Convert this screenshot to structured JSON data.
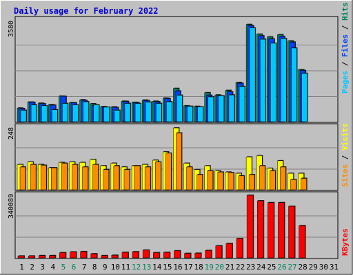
{
  "title": "Daily usage for February 2022",
  "colors": {
    "background": "#c0c0c0",
    "plot_bg": "#c0c0c0",
    "grid": "#808080",
    "title": "#0000cc",
    "hits": "#008060",
    "files": "#0040ff",
    "pages": "#00c8ff",
    "visits": "#ffff00",
    "sites": "#ff8c00",
    "kbytes": "#ff0000",
    "weekend_label": "#008060",
    "weekday_label": "#000000"
  },
  "chart_data": [
    {
      "type": "bar",
      "panel": "hits-files-pages",
      "ymax_label": "3580",
      "ylim": [
        0,
        3580
      ],
      "legend_text": {
        "pages": "Pages",
        "files": "Files",
        "hits": "Hits",
        "sep1": " / ",
        "sep2": " / "
      },
      "categories": [
        "1",
        "2",
        "3",
        "4",
        "5",
        "6",
        "7",
        "8",
        "9",
        "10",
        "11",
        "12",
        "13",
        "14",
        "15",
        "16",
        "17",
        "18",
        "19",
        "20",
        "21",
        "22",
        "23",
        "24",
        "25",
        "26",
        "27",
        "28",
        "29",
        "30",
        "31"
      ],
      "series": [
        {
          "name": "Hits",
          "values": [
            480,
            690,
            650,
            600,
            900,
            670,
            770,
            630,
            530,
            520,
            720,
            680,
            760,
            720,
            830,
            1170,
            560,
            540,
            1020,
            940,
            1100,
            1380,
            3420,
            3080,
            2980,
            3060,
            2840,
            1830,
            0,
            0,
            0
          ]
        },
        {
          "name": "Files",
          "values": [
            460,
            680,
            630,
            580,
            890,
            660,
            750,
            560,
            510,
            500,
            710,
            670,
            740,
            700,
            810,
            1080,
            540,
            520,
            930,
            910,
            1050,
            1350,
            3380,
            3020,
            2910,
            3000,
            2800,
            1800,
            0,
            0,
            0
          ]
        },
        {
          "name": "Pages",
          "values": [
            400,
            590,
            560,
            420,
            640,
            590,
            700,
            590,
            510,
            400,
            640,
            640,
            690,
            640,
            700,
            930,
            540,
            520,
            870,
            910,
            940,
            1240,
            3300,
            2900,
            2760,
            2920,
            2590,
            1700,
            0,
            0,
            0
          ]
        }
      ]
    },
    {
      "type": "bar",
      "panel": "visits-sites",
      "ymax_label": "248",
      "ylim": [
        0,
        248
      ],
      "legend_text": {
        "sites": "Sites",
        "visits": "Visits",
        "sep": " / "
      },
      "categories": [
        "1",
        "2",
        "3",
        "4",
        "5",
        "6",
        "7",
        "8",
        "9",
        "10",
        "11",
        "12",
        "13",
        "14",
        "15",
        "16",
        "17",
        "18",
        "19",
        "20",
        "21",
        "22",
        "23",
        "24",
        "25",
        "26",
        "27",
        "28",
        "29",
        "30",
        "31"
      ],
      "series": [
        {
          "name": "Visits",
          "values": [
            100,
            110,
            100,
            87,
            108,
            110,
            108,
            120,
            95,
            105,
            90,
            95,
            100,
            117,
            150,
            245,
            105,
            80,
            95,
            75,
            70,
            65,
            130,
            135,
            85,
            115,
            65,
            65,
            0,
            0,
            0
          ]
        },
        {
          "name": "Sites",
          "values": [
            90,
            100,
            97,
            87,
            105,
            100,
            90,
            100,
            80,
            95,
            80,
            95,
            90,
            110,
            145,
            225,
            90,
            60,
            75,
            70,
            68,
            55,
            60,
            95,
            75,
            90,
            40,
            45,
            0,
            0,
            0
          ]
        }
      ]
    },
    {
      "type": "bar",
      "panel": "kbytes",
      "ymax_label": "340089",
      "ylim": [
        0,
        340089
      ],
      "legend_text": {
        "kbytes": "KBytes"
      },
      "categories": [
        "1",
        "2",
        "3",
        "4",
        "5",
        "6",
        "7",
        "8",
        "9",
        "10",
        "11",
        "12",
        "13",
        "14",
        "15",
        "16",
        "17",
        "18",
        "19",
        "20",
        "21",
        "22",
        "23",
        "24",
        "25",
        "26",
        "27",
        "28",
        "29",
        "30",
        "31"
      ],
      "series": [
        {
          "name": "KBytes",
          "values": [
            10000,
            10000,
            12000,
            12000,
            28000,
            32000,
            34000,
            22000,
            12000,
            14000,
            30000,
            33000,
            42000,
            28000,
            30000,
            38000,
            24000,
            25000,
            40000,
            65000,
            78000,
            105000,
            340000,
            310000,
            300000,
            300000,
            280000,
            175000,
            0,
            0,
            0
          ]
        }
      ]
    }
  ],
  "x_labels": [
    "1",
    "2",
    "3",
    "4",
    "5",
    "6",
    "7",
    "8",
    "9",
    "10",
    "11",
    "12",
    "13",
    "14",
    "15",
    "16",
    "17",
    "18",
    "19",
    "20",
    "21",
    "22",
    "23",
    "24",
    "25",
    "26",
    "27",
    "28",
    "29",
    "30",
    "31"
  ],
  "weekend_days": [
    "5",
    "6",
    "12",
    "13",
    "19",
    "20",
    "26",
    "27"
  ]
}
